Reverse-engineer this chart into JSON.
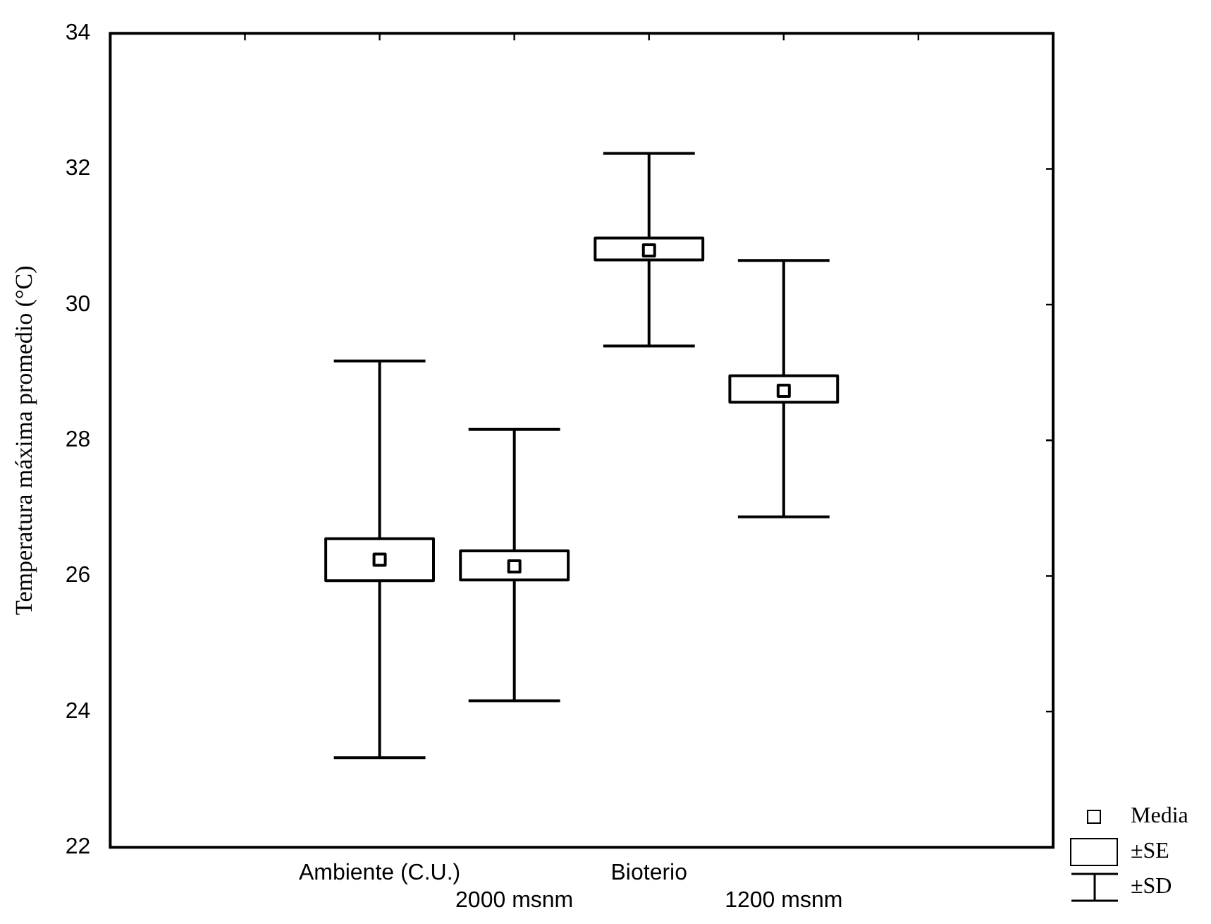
{
  "chart_data": {
    "type": "box",
    "ylabel": "Temperatura máxima promedio (°C)",
    "categories": [
      null,
      "Ambiente (C.U.)",
      "2000 msnm",
      "Bioterio",
      "1200 msnm",
      null
    ],
    "series": [
      {
        "color": "#000000",
        "boxes": [
          null,
          {
            "low": 23.32,
            "q1": 25.93,
            "median": 26.24,
            "q3": 26.55,
            "high": 29.17
          },
          {
            "low": 24.16,
            "q1": 25.94,
            "median": 26.14,
            "q3": 26.37,
            "high": 28.16
          },
          {
            "low": 29.39,
            "q1": 30.66,
            "median": 30.8,
            "q3": 30.98,
            "high": 32.23
          },
          {
            "low": 26.87,
            "q1": 28.56,
            "median": 28.73,
            "q3": 28.95,
            "high": 30.65
          },
          null
        ]
      }
    ],
    "ylim": [
      22,
      34
    ],
    "yticks": [
      22,
      24,
      26,
      28,
      30,
      32,
      34
    ],
    "grid": false,
    "marker": "square",
    "annotations": [
      "Media",
      "±SE",
      "±SD"
    ]
  }
}
